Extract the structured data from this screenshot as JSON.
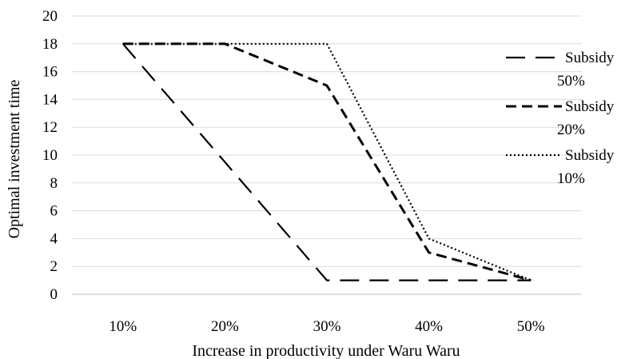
{
  "chart_data": {
    "type": "line",
    "title": "",
    "xlabel": "Increase in productivity under Waru Waru",
    "ylabel": "Optimal investment time",
    "categories": [
      "10%",
      "20%",
      "30%",
      "40%",
      "50%"
    ],
    "ylim": [
      0,
      20
    ],
    "yticks": [
      0,
      2,
      4,
      6,
      8,
      10,
      12,
      14,
      16,
      18,
      20
    ],
    "grid": "horizontal",
    "legend_position": "right",
    "series": [
      {
        "name_lines": [
          "Subsidy",
          "50%"
        ],
        "values": [
          18,
          9.5,
          1,
          1,
          1
        ],
        "dash": "long-dash",
        "color": "#000000"
      },
      {
        "name_lines": [
          "Subsidy",
          "20%"
        ],
        "values": [
          18,
          18,
          15,
          3,
          1
        ],
        "dash": "dash",
        "color": "#000000"
      },
      {
        "name_lines": [
          "Subsidy",
          "10%"
        ],
        "values": [
          18,
          18,
          18,
          4,
          1
        ],
        "dash": "dot",
        "color": "#000000"
      }
    ]
  }
}
